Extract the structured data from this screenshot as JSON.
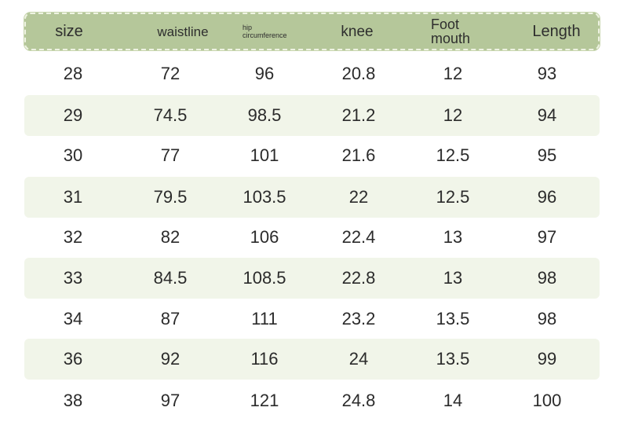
{
  "header": {
    "size": "size",
    "waistline": "waistline",
    "hip_line1": "hip",
    "hip_line2": "circumference",
    "knee": "knee",
    "foot_line1": "Foot",
    "foot_line2": "mouth",
    "length": "Length"
  },
  "rows": [
    [
      "28",
      "72",
      "96",
      "20.8",
      "12",
      "93"
    ],
    [
      "29",
      "74.5",
      "98.5",
      "21.2",
      "12",
      "94"
    ],
    [
      "30",
      "77",
      "101",
      "21.6",
      "12.5",
      "95"
    ],
    [
      "31",
      "79.5",
      "103.5",
      "22",
      "12.5",
      "96"
    ],
    [
      "32",
      "82",
      "106",
      "22.4",
      "13",
      "97"
    ],
    [
      "33",
      "84.5",
      "108.5",
      "22.8",
      "13",
      "98"
    ],
    [
      "34",
      "87",
      "111",
      "23.2",
      "13.5",
      "98"
    ],
    [
      "36",
      "92",
      "116",
      "24",
      "13.5",
      "99"
    ],
    [
      "38",
      "97",
      "121",
      "24.8",
      "14",
      "100"
    ]
  ],
  "colors": {
    "header_bg": "#b5c79a",
    "shaded_row_bg": "#f1f5e9",
    "text": "#2b2b2b"
  }
}
